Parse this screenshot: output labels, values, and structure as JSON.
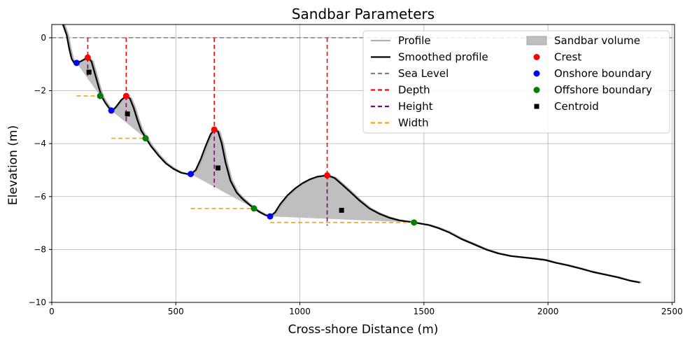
{
  "chart_data": {
    "type": "line",
    "title": "Sandbar Parameters",
    "xlabel": "Cross-shore Distance (m)",
    "ylabel": "Elevation (m)",
    "xlim": [
      0,
      2510
    ],
    "ylim": [
      -10,
      0.5
    ],
    "xticks": [
      0,
      500,
      1000,
      1500,
      2000,
      2500
    ],
    "yticks": [
      0,
      -2,
      -4,
      -6,
      -8,
      -10
    ],
    "grid": true,
    "legend_position": "top-right",
    "colors": {
      "profile": "#b0b0b0",
      "smoothed": "#000000",
      "sea_level": "#808080",
      "depth": "#ff0000",
      "height": "#800080",
      "width": "#ffa500",
      "volume": "#bfbfbf",
      "crest": "#ff0000",
      "onshore": "#0000ff",
      "offshore": "#008000",
      "centroid": "#000000"
    },
    "legend": [
      {
        "label": "Profile",
        "kind": "line",
        "color": "#b0b0b0",
        "dash": ""
      },
      {
        "label": "Smoothed profile",
        "kind": "line",
        "color": "#000000",
        "dash": ""
      },
      {
        "label": "Sea Level",
        "kind": "line",
        "color": "#808080",
        "dash": "6,4"
      },
      {
        "label": "Depth",
        "kind": "line",
        "color": "#ff0000",
        "dash": "6,4"
      },
      {
        "label": "Height",
        "kind": "line",
        "color": "#800080",
        "dash": "6,4"
      },
      {
        "label": "Width",
        "kind": "line",
        "color": "#ffa500",
        "dash": "6,4"
      },
      {
        "label": "Sandbar volume",
        "kind": "patch",
        "color": "#bfbfbf",
        "dash": ""
      },
      {
        "label": "Crest",
        "kind": "dot",
        "color": "#ff0000",
        "dash": ""
      },
      {
        "label": "Onshore boundary",
        "kind": "dot",
        "color": "#0000ff",
        "dash": ""
      },
      {
        "label": "Offshore boundary",
        "kind": "dot",
        "color": "#008000",
        "dash": ""
      },
      {
        "label": "Centroid",
        "kind": "square",
        "color": "#000000",
        "dash": ""
      }
    ],
    "smoothed_profile": [
      [
        45,
        0.5
      ],
      [
        60,
        0.1
      ],
      [
        70,
        -0.4
      ],
      [
        80,
        -0.8
      ],
      [
        90,
        -0.95
      ],
      [
        100,
        -0.95
      ],
      [
        115,
        -0.9
      ],
      [
        130,
        -0.82
      ],
      [
        145,
        -0.75
      ],
      [
        160,
        -0.9
      ],
      [
        175,
        -1.4
      ],
      [
        190,
        -1.9
      ],
      [
        200,
        -2.2
      ],
      [
        215,
        -2.45
      ],
      [
        230,
        -2.65
      ],
      [
        245,
        -2.75
      ],
      [
        260,
        -2.6
      ],
      [
        280,
        -2.35
      ],
      [
        300,
        -2.2
      ],
      [
        315,
        -2.3
      ],
      [
        330,
        -2.65
      ],
      [
        345,
        -3.1
      ],
      [
        360,
        -3.5
      ],
      [
        380,
        -3.8
      ],
      [
        400,
        -4.1
      ],
      [
        430,
        -4.45
      ],
      [
        460,
        -4.75
      ],
      [
        490,
        -4.95
      ],
      [
        520,
        -5.1
      ],
      [
        545,
        -5.15
      ],
      [
        560,
        -5.15
      ],
      [
        580,
        -5.0
      ],
      [
        600,
        -4.6
      ],
      [
        620,
        -4.1
      ],
      [
        640,
        -3.65
      ],
      [
        655,
        -3.47
      ],
      [
        670,
        -3.55
      ],
      [
        685,
        -4.0
      ],
      [
        700,
        -4.7
      ],
      [
        720,
        -5.4
      ],
      [
        745,
        -5.85
      ],
      [
        770,
        -6.1
      ],
      [
        795,
        -6.3
      ],
      [
        815,
        -6.45
      ],
      [
        840,
        -6.6
      ],
      [
        860,
        -6.7
      ],
      [
        880,
        -6.75
      ],
      [
        900,
        -6.6
      ],
      [
        920,
        -6.3
      ],
      [
        950,
        -5.95
      ],
      [
        980,
        -5.7
      ],
      [
        1010,
        -5.5
      ],
      [
        1040,
        -5.35
      ],
      [
        1070,
        -5.25
      ],
      [
        1110,
        -5.2
      ],
      [
        1140,
        -5.3
      ],
      [
        1170,
        -5.55
      ],
      [
        1200,
        -5.8
      ],
      [
        1240,
        -6.15
      ],
      [
        1280,
        -6.45
      ],
      [
        1320,
        -6.65
      ],
      [
        1360,
        -6.8
      ],
      [
        1400,
        -6.9
      ],
      [
        1460,
        -6.98
      ],
      [
        1520,
        -7.08
      ],
      [
        1560,
        -7.2
      ],
      [
        1600,
        -7.35
      ],
      [
        1650,
        -7.6
      ],
      [
        1700,
        -7.8
      ],
      [
        1750,
        -8.0
      ],
      [
        1800,
        -8.15
      ],
      [
        1850,
        -8.25
      ],
      [
        1900,
        -8.3
      ],
      [
        1950,
        -8.35
      ],
      [
        1990,
        -8.4
      ],
      [
        2030,
        -8.5
      ],
      [
        2080,
        -8.6
      ],
      [
        2130,
        -8.72
      ],
      [
        2180,
        -8.85
      ],
      [
        2230,
        -8.95
      ],
      [
        2280,
        -9.05
      ],
      [
        2330,
        -9.18
      ],
      [
        2370,
        -9.25
      ]
    ],
    "sandbars": [
      {
        "crest": [
          145,
          -0.75
        ],
        "onshore": [
          100,
          -0.95
        ],
        "offshore": [
          195,
          -2.2
        ],
        "centroid": [
          150,
          -1.3
        ],
        "depth": [
          145,
          0,
          -0.75
        ],
        "height": [
          145,
          -0.75,
          -1.55
        ],
        "width": [
          100,
          195,
          -2.2
        ]
      },
      {
        "crest": [
          300,
          -2.2
        ],
        "onshore": [
          240,
          -2.75
        ],
        "offshore": [
          378,
          -3.8
        ],
        "centroid": [
          305,
          -2.88
        ],
        "depth": [
          300,
          0,
          -2.2
        ],
        "height": [
          300,
          -2.2,
          -3.2
        ],
        "width": [
          240,
          378,
          -3.8
        ]
      },
      {
        "crest": [
          655,
          -3.47
        ],
        "onshore": [
          560,
          -5.15
        ],
        "offshore": [
          815,
          -6.45
        ],
        "centroid": [
          670,
          -4.92
        ],
        "depth": [
          655,
          0,
          -3.47
        ],
        "height": [
          655,
          -3.47,
          -5.65
        ],
        "width": [
          560,
          815,
          -6.45
        ]
      },
      {
        "crest": [
          1110,
          -5.2
        ],
        "onshore": [
          880,
          -6.75
        ],
        "offshore": [
          1460,
          -6.98
        ],
        "centroid": [
          1168,
          -6.52
        ],
        "depth": [
          1110,
          0,
          -5.2
        ],
        "height": [
          1110,
          -5.2,
          -7.1
        ],
        "width": [
          880,
          1460,
          -6.98
        ]
      }
    ]
  }
}
